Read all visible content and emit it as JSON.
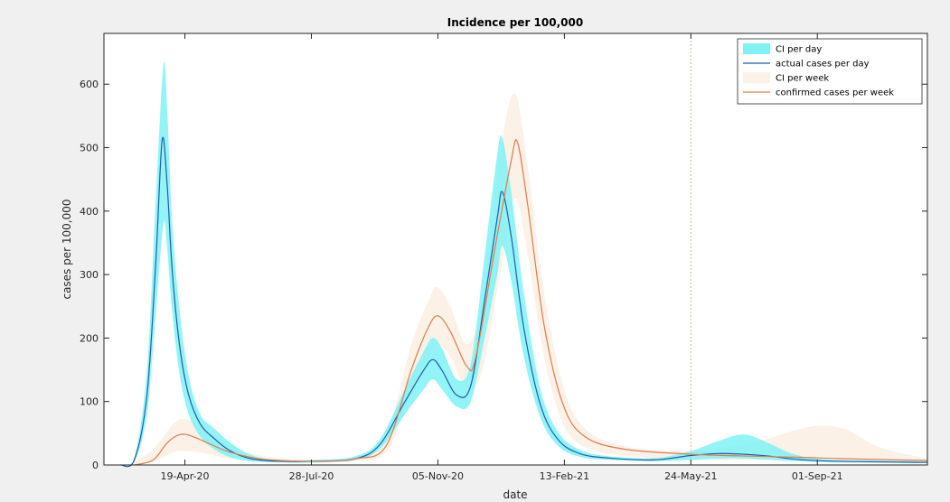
{
  "chart_data": {
    "type": "line",
    "title": "Incidence per 100,000",
    "xlabel": "date",
    "ylabel": "cases per 100,000",
    "x_range": [
      "2020-02-15",
      "2021-11-27"
    ],
    "ylim": [
      0,
      680
    ],
    "yticks": [
      0,
      100,
      200,
      300,
      400,
      500,
      600
    ],
    "xticks": [
      {
        "date": "2020-04-19",
        "label": "19-Apr-20"
      },
      {
        "date": "2020-07-28",
        "label": "28-Jul-20"
      },
      {
        "date": "2020-11-05",
        "label": "05-Nov-20"
      },
      {
        "date": "2021-02-13",
        "label": "13-Feb-21"
      },
      {
        "date": "2021-05-24",
        "label": "24-May-21"
      },
      {
        "date": "2021-09-01",
        "label": "01-Sep-21"
      }
    ],
    "grid": false,
    "legend_location": "top-right",
    "divider_date": "2021-05-24",
    "colors": {
      "ci_day": "#7ff2f5",
      "actual_day": "#1f5ea8",
      "ci_week": "#fbf1e6",
      "confirmed_week": "#e07a4f",
      "divider": "#b8c88c"
    },
    "series": [
      {
        "name": "CI per day",
        "kind": "band",
        "points": [
          {
            "x": "2020-02-28",
            "lo": 0,
            "hi": 0
          },
          {
            "x": "2020-03-10",
            "lo": 5,
            "hi": 12
          },
          {
            "x": "2020-03-20",
            "lo": 80,
            "hi": 150
          },
          {
            "x": "2020-03-27",
            "lo": 240,
            "hi": 420
          },
          {
            "x": "2020-04-02",
            "lo": 380,
            "hi": 630
          },
          {
            "x": "2020-04-05",
            "lo": 340,
            "hi": 560
          },
          {
            "x": "2020-04-09",
            "lo": 240,
            "hi": 380
          },
          {
            "x": "2020-04-15",
            "lo": 140,
            "hi": 240
          },
          {
            "x": "2020-04-22",
            "lo": 80,
            "hi": 140
          },
          {
            "x": "2020-05-01",
            "lo": 45,
            "hi": 80
          },
          {
            "x": "2020-05-12",
            "lo": 25,
            "hi": 58
          },
          {
            "x": "2020-05-25",
            "lo": 12,
            "hi": 35
          },
          {
            "x": "2020-06-10",
            "lo": 6,
            "hi": 16
          },
          {
            "x": "2020-07-01",
            "lo": 4,
            "hi": 8
          },
          {
            "x": "2020-08-01",
            "lo": 4,
            "hi": 8
          },
          {
            "x": "2020-09-01",
            "lo": 8,
            "hi": 14
          },
          {
            "x": "2020-09-20",
            "lo": 25,
            "hi": 40
          },
          {
            "x": "2020-10-10",
            "lo": 80,
            "hi": 120
          },
          {
            "x": "2020-10-25",
            "lo": 120,
            "hi": 180
          },
          {
            "x": "2020-11-01",
            "lo": 135,
            "hi": 200
          },
          {
            "x": "2020-11-08",
            "lo": 120,
            "hi": 185
          },
          {
            "x": "2020-11-20",
            "lo": 92,
            "hi": 135
          },
          {
            "x": "2020-12-01",
            "lo": 100,
            "hi": 160
          },
          {
            "x": "2020-12-12",
            "lo": 200,
            "hi": 330
          },
          {
            "x": "2020-12-22",
            "lo": 300,
            "hi": 490
          },
          {
            "x": "2020-12-26",
            "lo": 345,
            "hi": 515
          },
          {
            "x": "2021-01-02",
            "lo": 290,
            "hi": 430
          },
          {
            "x": "2021-01-12",
            "lo": 170,
            "hi": 270
          },
          {
            "x": "2021-01-25",
            "lo": 75,
            "hi": 120
          },
          {
            "x": "2021-02-08",
            "lo": 30,
            "hi": 52
          },
          {
            "x": "2021-02-25",
            "lo": 13,
            "hi": 24
          },
          {
            "x": "2021-03-20",
            "lo": 8,
            "hi": 14
          },
          {
            "x": "2021-04-25",
            "lo": 6,
            "hi": 11
          },
          {
            "x": "2021-05-24",
            "lo": 8,
            "hi": 22
          },
          {
            "x": "2021-06-15",
            "lo": 10,
            "hi": 38
          },
          {
            "x": "2021-07-05",
            "lo": 10,
            "hi": 48
          },
          {
            "x": "2021-07-25",
            "lo": 8,
            "hi": 34
          },
          {
            "x": "2021-08-15",
            "lo": 6,
            "hi": 16
          },
          {
            "x": "2021-09-15",
            "lo": 4,
            "hi": 8
          },
          {
            "x": "2021-11-27",
            "lo": 3,
            "hi": 6
          }
        ]
      },
      {
        "name": "actual cases per day",
        "kind": "line",
        "points": [
          {
            "x": "2020-02-28",
            "y": 0
          },
          {
            "x": "2020-03-10",
            "y": 8
          },
          {
            "x": "2020-03-20",
            "y": 110
          },
          {
            "x": "2020-03-27",
            "y": 320
          },
          {
            "x": "2020-04-01",
            "y": 512
          },
          {
            "x": "2020-04-05",
            "y": 440
          },
          {
            "x": "2020-04-09",
            "y": 305
          },
          {
            "x": "2020-04-15",
            "y": 185
          },
          {
            "x": "2020-04-22",
            "y": 110
          },
          {
            "x": "2020-05-01",
            "y": 65
          },
          {
            "x": "2020-05-12",
            "y": 42
          },
          {
            "x": "2020-05-25",
            "y": 22
          },
          {
            "x": "2020-06-10",
            "y": 10
          },
          {
            "x": "2020-07-01",
            "y": 6
          },
          {
            "x": "2020-08-01",
            "y": 6
          },
          {
            "x": "2020-09-01",
            "y": 10
          },
          {
            "x": "2020-09-20",
            "y": 32
          },
          {
            "x": "2020-10-10",
            "y": 100
          },
          {
            "x": "2020-10-25",
            "y": 150
          },
          {
            "x": "2020-11-01",
            "y": 166
          },
          {
            "x": "2020-11-08",
            "y": 150
          },
          {
            "x": "2020-11-20",
            "y": 110
          },
          {
            "x": "2020-12-01",
            "y": 125
          },
          {
            "x": "2020-12-12",
            "y": 260
          },
          {
            "x": "2020-12-22",
            "y": 390
          },
          {
            "x": "2020-12-26",
            "y": 430
          },
          {
            "x": "2021-01-02",
            "y": 360
          },
          {
            "x": "2021-01-12",
            "y": 215
          },
          {
            "x": "2021-01-25",
            "y": 95
          },
          {
            "x": "2021-02-08",
            "y": 40
          },
          {
            "x": "2021-02-25",
            "y": 18
          },
          {
            "x": "2021-03-20",
            "y": 11
          },
          {
            "x": "2021-04-25",
            "y": 8
          },
          {
            "x": "2021-05-24",
            "y": 15
          },
          {
            "x": "2021-06-15",
            "y": 18
          },
          {
            "x": "2021-07-05",
            "y": 17
          },
          {
            "x": "2021-07-25",
            "y": 14
          },
          {
            "x": "2021-08-15",
            "y": 9
          },
          {
            "x": "2021-09-15",
            "y": 6
          },
          {
            "x": "2021-11-27",
            "y": 4
          }
        ]
      },
      {
        "name": "CI per week",
        "kind": "band",
        "points": [
          {
            "x": "2020-03-05",
            "lo": 0,
            "hi": 0
          },
          {
            "x": "2020-03-25",
            "lo": 5,
            "hi": 25
          },
          {
            "x": "2020-04-10",
            "lo": 20,
            "hi": 65
          },
          {
            "x": "2020-04-20",
            "lo": 22,
            "hi": 72
          },
          {
            "x": "2020-05-05",
            "lo": 18,
            "hi": 55
          },
          {
            "x": "2020-05-25",
            "lo": 10,
            "hi": 32
          },
          {
            "x": "2020-06-20",
            "lo": 5,
            "hi": 14
          },
          {
            "x": "2020-08-01",
            "lo": 4,
            "hi": 9
          },
          {
            "x": "2020-09-01",
            "lo": 6,
            "hi": 14
          },
          {
            "x": "2020-09-25",
            "lo": 20,
            "hi": 45
          },
          {
            "x": "2020-10-15",
            "lo": 110,
            "hi": 190
          },
          {
            "x": "2020-10-30",
            "lo": 175,
            "hi": 265
          },
          {
            "x": "2020-11-05",
            "lo": 190,
            "hi": 280
          },
          {
            "x": "2020-11-15",
            "lo": 170,
            "hi": 250
          },
          {
            "x": "2020-11-28",
            "lo": 120,
            "hi": 190
          },
          {
            "x": "2020-12-10",
            "lo": 150,
            "hi": 260
          },
          {
            "x": "2020-12-25",
            "lo": 310,
            "hi": 500
          },
          {
            "x": "2021-01-05",
            "lo": 420,
            "hi": 585
          },
          {
            "x": "2021-01-15",
            "lo": 330,
            "hi": 470
          },
          {
            "x": "2021-01-28",
            "lo": 170,
            "hi": 270
          },
          {
            "x": "2021-02-12",
            "lo": 65,
            "hi": 125
          },
          {
            "x": "2021-03-01",
            "lo": 28,
            "hi": 58
          },
          {
            "x": "2021-04-01",
            "lo": 15,
            "hi": 30
          },
          {
            "x": "2021-05-24",
            "lo": 8,
            "hi": 22
          },
          {
            "x": "2021-07-10",
            "lo": 8,
            "hi": 34
          },
          {
            "x": "2021-08-15",
            "lo": 10,
            "hi": 55
          },
          {
            "x": "2021-09-05",
            "lo": 10,
            "hi": 62
          },
          {
            "x": "2021-09-25",
            "lo": 8,
            "hi": 55
          },
          {
            "x": "2021-10-20",
            "lo": 5,
            "hi": 28
          },
          {
            "x": "2021-11-27",
            "lo": 4,
            "hi": 10
          }
        ]
      },
      {
        "name": "confirmed cases per week",
        "kind": "line",
        "points": [
          {
            "x": "2020-03-10",
            "y": 0
          },
          {
            "x": "2020-03-25",
            "y": 8
          },
          {
            "x": "2020-04-05",
            "y": 35
          },
          {
            "x": "2020-04-15",
            "y": 48
          },
          {
            "x": "2020-04-25",
            "y": 45
          },
          {
            "x": "2020-05-10",
            "y": 32
          },
          {
            "x": "2020-05-25",
            "y": 20
          },
          {
            "x": "2020-06-20",
            "y": 9
          },
          {
            "x": "2020-08-01",
            "y": 6
          },
          {
            "x": "2020-09-01",
            "y": 10
          },
          {
            "x": "2020-09-25",
            "y": 30
          },
          {
            "x": "2020-10-15",
            "y": 150
          },
          {
            "x": "2020-10-28",
            "y": 215
          },
          {
            "x": "2020-11-05",
            "y": 235
          },
          {
            "x": "2020-11-15",
            "y": 210
          },
          {
            "x": "2020-11-28",
            "y": 155
          },
          {
            "x": "2020-12-05",
            "y": 170
          },
          {
            "x": "2020-12-20",
            "y": 340
          },
          {
            "x": "2021-01-02",
            "y": 480
          },
          {
            "x": "2021-01-07",
            "y": 508
          },
          {
            "x": "2021-01-15",
            "y": 410
          },
          {
            "x": "2021-01-28",
            "y": 220
          },
          {
            "x": "2021-02-12",
            "y": 95
          },
          {
            "x": "2021-03-01",
            "y": 45
          },
          {
            "x": "2021-04-01",
            "y": 25
          },
          {
            "x": "2021-05-24",
            "y": 17
          },
          {
            "x": "2021-07-10",
            "y": 14
          },
          {
            "x": "2021-08-20",
            "y": 12
          },
          {
            "x": "2021-09-20",
            "y": 10
          },
          {
            "x": "2021-11-27",
            "y": 7
          }
        ]
      }
    ]
  }
}
